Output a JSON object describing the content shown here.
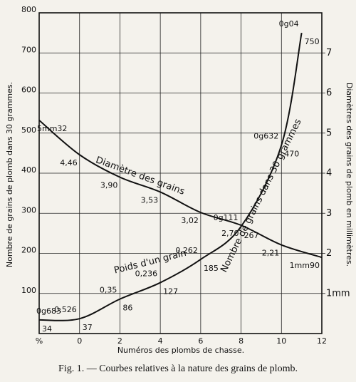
{
  "chart_data": {
    "type": "line",
    "x_label": "Numéros des plombs de chasse.",
    "y_label": "Nombre de grains de plomb dans 30 grammes.",
    "y2_label": "Diamètres des grains de plomb en millimètres.",
    "caption": "Fig. 1. — Courbes relatives à la nature des grains de plomb.",
    "xlim": [
      -2,
      12
    ],
    "xticks": [
      {
        "value": -2,
        "label": "%"
      },
      0,
      2,
      4,
      6,
      8,
      10,
      12
    ],
    "ylim": [
      0,
      800
    ],
    "yticks": [
      100,
      200,
      300,
      400,
      500,
      600,
      700,
      800
    ],
    "y2lim": [
      0,
      8
    ],
    "y2ticks": [
      {
        "value": 1,
        "label": "1mm"
      },
      2,
      3,
      4,
      5,
      6,
      7
    ],
    "grid": true,
    "series": [
      {
        "name": "Diamètre des grains",
        "color": "#111111",
        "axis": "y2",
        "x": [
          -2,
          0,
          2,
          4,
          6,
          8,
          10,
          12
        ],
        "values": [
          5.32,
          4.46,
          3.9,
          3.53,
          3.02,
          2.7,
          2.21,
          1.9
        ],
        "value_labels": [
          "5mm32",
          "4,46",
          "3,90",
          "3,53",
          "3,02",
          "2,70",
          "2,21",
          "1mm90"
        ]
      },
      {
        "name": "Nombre de grains dans 30 grammes",
        "color": "#111111",
        "x": [
          -2,
          0,
          2,
          4,
          6,
          8,
          10,
          11
        ],
        "values": [
          34,
          37,
          86,
          127,
          185,
          267,
          470,
          750
        ]
      }
    ],
    "weight_labels": {
      "name": "Poids d'un grain",
      "x": [
        -2,
        0,
        2,
        4,
        6,
        8,
        10,
        11
      ],
      "labels": [
        "0g683",
        "0,526",
        "0,35",
        "0,236",
        "0,262",
        "0g111",
        "0g632",
        "0g04"
      ]
    }
  }
}
